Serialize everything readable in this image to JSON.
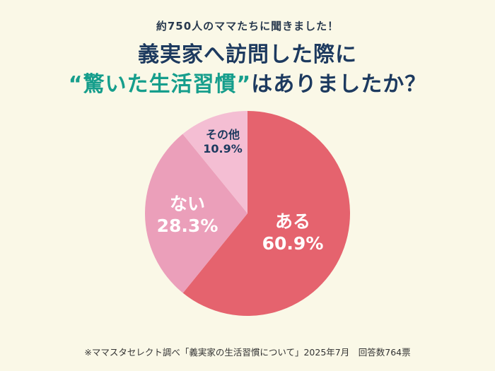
{
  "header": {
    "kicker": "約750人のママたちに聞きました！",
    "title_line1": "義実家へ訪問した際に",
    "title_line2_highlight": "“驚いた生活習慣”",
    "title_line2_rest": "はありましたか？"
  },
  "chart_data": {
    "type": "pie",
    "title": "義実家へ訪問した際に“驚いた生活習慣”はありましたか？",
    "direction": "clockwise",
    "start_angle_deg": -90,
    "slices": [
      {
        "label": "ある",
        "value": 60.9,
        "pct_label": "60.9%",
        "color": "#E5636E",
        "label_color": "#FFFFFF"
      },
      {
        "label": "ない",
        "value": 28.3,
        "pct_label": "28.3%",
        "color": "#EB9FBA",
        "label_color": "#FFFFFF"
      },
      {
        "label": "その他",
        "value": 10.9,
        "pct_label": "10.9%",
        "color": "#F4BED3",
        "label_color": "#1D3A5F"
      }
    ]
  },
  "footnote": "※ママスタセレクト調べ「義実家の生活習慣について」2025年7月　回答数764票",
  "theme": {
    "background": "#FAF8E7",
    "navy": "#1D3A5F",
    "kicker_color": "#28394E",
    "teal": "#169E8C",
    "footnote_color": "#333333"
  }
}
